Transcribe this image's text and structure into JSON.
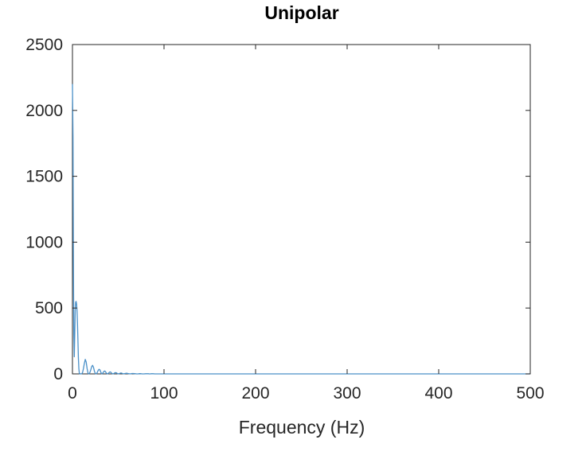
{
  "chart_data": {
    "type": "line",
    "title": "Unipolar",
    "xlabel": "Frequency (Hz)",
    "ylabel": "",
    "xlim": [
      0,
      500
    ],
    "ylim": [
      0,
      2500
    ],
    "xticks": [
      0,
      100,
      200,
      300,
      400,
      500
    ],
    "yticks": [
      0,
      500,
      1000,
      1500,
      2000,
      2500
    ],
    "grid": false,
    "line_color": "#4a90c8",
    "axis_color": "#262626",
    "series": [
      {
        "x": [
          0,
          0.6,
          1,
          1.5,
          2,
          2.5,
          3,
          3.5,
          4,
          4.5,
          5,
          5.5,
          6,
          6.5,
          7,
          7.5,
          8,
          8.5,
          9,
          10,
          11,
          12,
          13,
          14,
          15,
          16,
          17,
          18,
          19,
          20,
          21,
          22,
          23,
          24,
          25,
          26,
          27,
          28,
          29,
          30,
          31,
          32,
          33,
          34,
          35,
          36,
          37,
          38,
          39,
          40,
          41,
          42,
          43,
          44,
          45,
          46,
          47,
          48,
          49,
          50,
          51,
          52,
          53,
          54,
          55,
          56,
          57,
          58,
          59,
          60,
          62,
          63,
          64,
          65,
          66,
          68,
          70,
          72,
          73,
          74,
          75,
          76,
          78,
          80,
          82,
          83,
          84,
          85,
          86,
          88,
          90,
          95,
          100,
          110,
          120,
          130,
          150,
          200,
          300,
          400,
          500
        ],
        "values": [
          2200,
          1800,
          900,
          300,
          130,
          300,
          480,
          545,
          550,
          530,
          480,
          380,
          250,
          120,
          40,
          5,
          0,
          2,
          0,
          0,
          10,
          40,
          80,
          110,
          90,
          40,
          5,
          0,
          10,
          30,
          55,
          65,
          50,
          20,
          2,
          0,
          10,
          25,
          35,
          30,
          12,
          0,
          5,
          15,
          22,
          18,
          6,
          0,
          3,
          10,
          15,
          12,
          4,
          0,
          2,
          7,
          10,
          8,
          3,
          0,
          2,
          5,
          7,
          5,
          2,
          0,
          2,
          4,
          5,
          4,
          1,
          0,
          1,
          3,
          3,
          2,
          0,
          0,
          2,
          2,
          1,
          0,
          0,
          1,
          1,
          1,
          0,
          0,
          1,
          1,
          0,
          0,
          0,
          0,
          0,
          0,
          0,
          0,
          0,
          0,
          0
        ]
      }
    ]
  }
}
